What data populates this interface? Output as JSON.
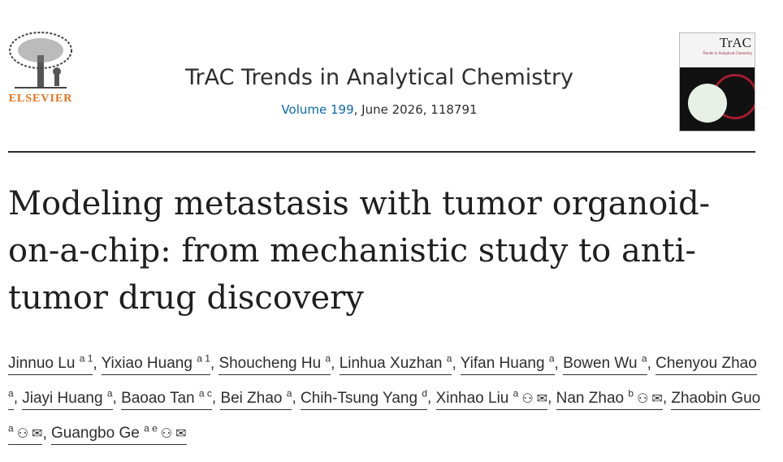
{
  "journal": {
    "publisher": "ELSEVIER",
    "title": "TrAC Trends in Analytical Chemistry",
    "volume_link": "Volume 199",
    "issue_rest": ", June 2026, 118791",
    "cover_title": "TrAC",
    "cover_subtitle": "Trends in Analytical Chemistry"
  },
  "article": {
    "title": "Modeling metastasis with tumor organoid-on-a-chip: from mechanistic study to anti-tumor drug discovery"
  },
  "authors": [
    {
      "name": "Jinnuo Lu",
      "sup": "a 1"
    },
    {
      "name": "Yixiao Huang",
      "sup": "a 1"
    },
    {
      "name": "Shoucheng Hu",
      "sup": "a"
    },
    {
      "name": "Linhua Xuzhan",
      "sup": "a"
    },
    {
      "name": "Yifan Huang",
      "sup": "a"
    },
    {
      "name": "Bowen Wu",
      "sup": "a"
    },
    {
      "name": "Chenyou Zhao",
      "sup": "a"
    },
    {
      "name": "Jiayi Huang",
      "sup": "a"
    },
    {
      "name": "Baoao Tan",
      "sup": "a c"
    },
    {
      "name": "Bei Zhao",
      "sup": "a"
    },
    {
      "name": "Chih-Tsung Yang",
      "sup": "d"
    },
    {
      "name": "Xinhao Liu",
      "sup": "a",
      "icons": true
    },
    {
      "name": "Nan Zhao",
      "sup": "b",
      "icons": true
    },
    {
      "name": "Zhaobin Guo",
      "sup": "a",
      "icons": true
    },
    {
      "name": "Guangbo Ge",
      "sup": "a e",
      "icons": true
    }
  ],
  "icons": {
    "person": "person-icon",
    "email": "envelope-icon"
  }
}
